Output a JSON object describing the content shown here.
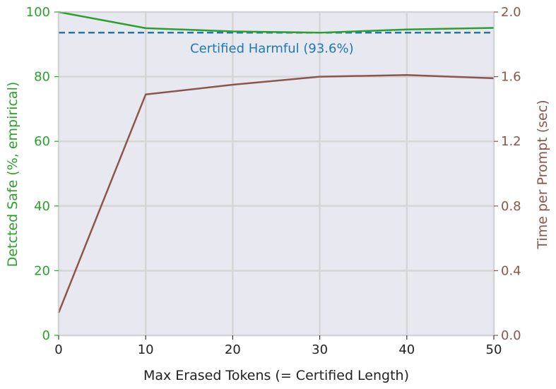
{
  "chart_data": {
    "type": "line",
    "title": "",
    "xlabel": "Max Erased Tokens (= Certified Length)",
    "ylabel_left": "Detcted Safe (%, empirical)",
    "ylabel_right": "Time per Prompt (sec)",
    "xlim": [
      0,
      50
    ],
    "ylim_left": [
      0,
      100
    ],
    "ylim_right": [
      0.0,
      2.0
    ],
    "x_ticks": [
      "0",
      "10",
      "20",
      "30",
      "40",
      "50"
    ],
    "y_left_ticks": [
      "0",
      "20",
      "40",
      "60",
      "80",
      "100"
    ],
    "y_right_ticks": [
      "0.0",
      "0.4",
      "0.8",
      "1.2",
      "1.6",
      "2.0"
    ],
    "grid": true,
    "colors": {
      "safe": "#2ca02c",
      "time": "#8c564b",
      "certified": "#1f77b4",
      "background": "#e8e8f0",
      "grid": "#d6d6d6"
    },
    "series": [
      {
        "name": "Detected Safe",
        "axis": "left",
        "x": [
          0,
          10,
          20,
          30,
          40,
          50
        ],
        "values": [
          100,
          95.0,
          94.0,
          93.6,
          94.6,
          95.1
        ]
      },
      {
        "name": "Time per Prompt",
        "axis": "right",
        "x": [
          0,
          10,
          20,
          30,
          40,
          50
        ],
        "values": [
          0.14,
          1.49,
          1.55,
          1.6,
          1.61,
          1.59
        ]
      }
    ],
    "reference_line": {
      "axis": "left",
      "value": 93.6,
      "style": "dashed",
      "label": "Certified Harmful (93.6%)"
    }
  }
}
